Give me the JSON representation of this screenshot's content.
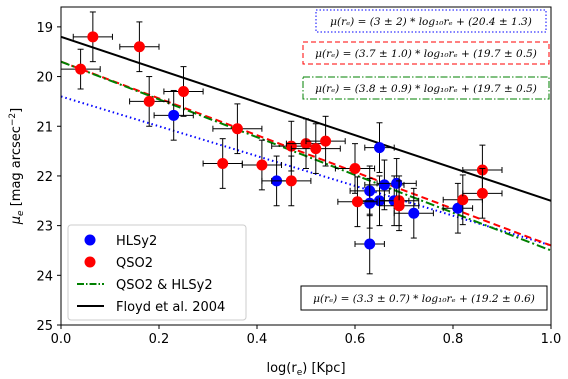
{
  "chart_data": {
    "type": "scatter",
    "xlabel": "log(r",
    "xlabel_sub": "e",
    "xlabel_tail": ") [Kpc]",
    "ylabel": "μ",
    "ylabel_sub": "e",
    "ylabel_tail": " [mag arcsec",
    "ylabel_sup": "−2",
    "ylabel_close": "]",
    "xlim": [
      0.0,
      1.0
    ],
    "ylim": [
      25,
      18.6
    ],
    "y_inverted": true,
    "xticks": [
      "0.0",
      "0.2",
      "0.4",
      "0.6",
      "0.8",
      "1.0"
    ],
    "yticks": [
      "19",
      "20",
      "21",
      "22",
      "23",
      "24",
      "25"
    ],
    "legend_position": "lower-left",
    "legend": [
      {
        "label": "HLSy2",
        "kind": "marker",
        "color": "#0000ff"
      },
      {
        "label": "QSO2",
        "kind": "marker",
        "color": "#ff0000"
      },
      {
        "label": "QSO2 & HLSy2",
        "kind": "dashdot",
        "color": "#008000"
      },
      {
        "label": "Floyd et al. 2004",
        "kind": "solid",
        "color": "#000000"
      }
    ],
    "series": [
      {
        "name": "HLSy2",
        "color": "#0000ff",
        "points": [
          {
            "x": 0.23,
            "y": 20.78,
            "xerr": 0.04,
            "yerr": 0.5
          },
          {
            "x": 0.44,
            "y": 22.1,
            "xerr": 0.03,
            "yerr": 0.5
          },
          {
            "x": 0.63,
            "y": 22.3,
            "xerr": 0.04,
            "yerr": 0.5
          },
          {
            "x": 0.63,
            "y": 22.55,
            "xerr": 0.03,
            "yerr": 0.5
          },
          {
            "x": 0.63,
            "y": 23.37,
            "xerr": 0.03,
            "yerr": 0.6
          },
          {
            "x": 0.65,
            "y": 21.43,
            "xerr": 0.03,
            "yerr": 0.5
          },
          {
            "x": 0.65,
            "y": 22.5,
            "xerr": 0.04,
            "yerr": 0.5
          },
          {
            "x": 0.66,
            "y": 22.18,
            "xerr": 0.04,
            "yerr": 0.5
          },
          {
            "x": 0.68,
            "y": 22.5,
            "xerr": 0.03,
            "yerr": 0.5
          },
          {
            "x": 0.685,
            "y": 22.15,
            "xerr": 0.04,
            "yerr": 0.5
          },
          {
            "x": 0.72,
            "y": 22.75,
            "xerr": 0.04,
            "yerr": 0.5
          },
          {
            "x": 0.81,
            "y": 22.65,
            "xerr": 0.03,
            "yerr": 0.5
          }
        ]
      },
      {
        "name": "QSO2",
        "color": "#ff0000",
        "points": [
          {
            "x": 0.04,
            "y": 19.85,
            "xerr": 0.04,
            "yerr": 0.4
          },
          {
            "x": 0.065,
            "y": 19.2,
            "xerr": 0.04,
            "yerr": 0.5
          },
          {
            "x": 0.16,
            "y": 19.4,
            "xerr": 0.04,
            "yerr": 0.5
          },
          {
            "x": 0.18,
            "y": 20.5,
            "xerr": 0.04,
            "yerr": 0.5
          },
          {
            "x": 0.25,
            "y": 20.3,
            "xerr": 0.04,
            "yerr": 0.5
          },
          {
            "x": 0.33,
            "y": 21.75,
            "xerr": 0.04,
            "yerr": 0.5
          },
          {
            "x": 0.36,
            "y": 21.05,
            "xerr": 0.05,
            "yerr": 0.5
          },
          {
            "x": 0.41,
            "y": 21.78,
            "xerr": 0.04,
            "yerr": 0.5
          },
          {
            "x": 0.47,
            "y": 21.4,
            "xerr": 0.04,
            "yerr": 0.5
          },
          {
            "x": 0.47,
            "y": 22.1,
            "xerr": 0.04,
            "yerr": 0.5
          },
          {
            "x": 0.5,
            "y": 21.35,
            "xerr": 0.04,
            "yerr": 0.5
          },
          {
            "x": 0.52,
            "y": 21.45,
            "xerr": 0.05,
            "yerr": 0.5
          },
          {
            "x": 0.54,
            "y": 21.3,
            "xerr": 0.04,
            "yerr": 0.5
          },
          {
            "x": 0.6,
            "y": 21.85,
            "xerr": 0.04,
            "yerr": 0.5
          },
          {
            "x": 0.605,
            "y": 22.52,
            "xerr": 0.04,
            "yerr": 0.5
          },
          {
            "x": 0.69,
            "y": 22.5,
            "xerr": 0.04,
            "yerr": 0.5
          },
          {
            "x": 0.69,
            "y": 22.6,
            "xerr": 0.04,
            "yerr": 0.5
          },
          {
            "x": 0.82,
            "y": 22.48,
            "xerr": 0.04,
            "yerr": 0.5
          },
          {
            "x": 0.86,
            "y": 21.88,
            "xerr": 0.04,
            "yerr": 0.5
          },
          {
            "x": 0.86,
            "y": 22.35,
            "xerr": 0.04,
            "yerr": 0.5
          }
        ]
      }
    ],
    "fits": [
      {
        "name": "HLSy2",
        "color": "#0000ff",
        "style": "dotted",
        "slope": 3.0,
        "intercept": 20.4,
        "equation": "μ(rₑ) = (3 ± 2) * log₁₀rₑ + (20.4 ± 1.3)"
      },
      {
        "name": "QSO2",
        "color": "#ff0000",
        "style": "dashed",
        "slope": 3.7,
        "intercept": 19.7,
        "equation": "μ(rₑ) = (3.7 ± 1.0) * log₁₀rₑ + (19.7 ± 0.5)"
      },
      {
        "name": "QSO2 & HLSy2",
        "color": "#008000",
        "style": "dashdot",
        "slope": 3.8,
        "intercept": 19.7,
        "equation": "μ(rₑ) = (3.8 ± 0.9) * log₁₀rₑ + (19.7 ± 0.5)"
      },
      {
        "name": "Floyd et al. 2004",
        "color": "#000000",
        "style": "solid",
        "slope": 3.3,
        "intercept": 19.2,
        "equation": "μ(rₑ) = (3.3 ± 0.7) * log₁₀rₑ + (19.2 ± 0.6)"
      }
    ]
  }
}
